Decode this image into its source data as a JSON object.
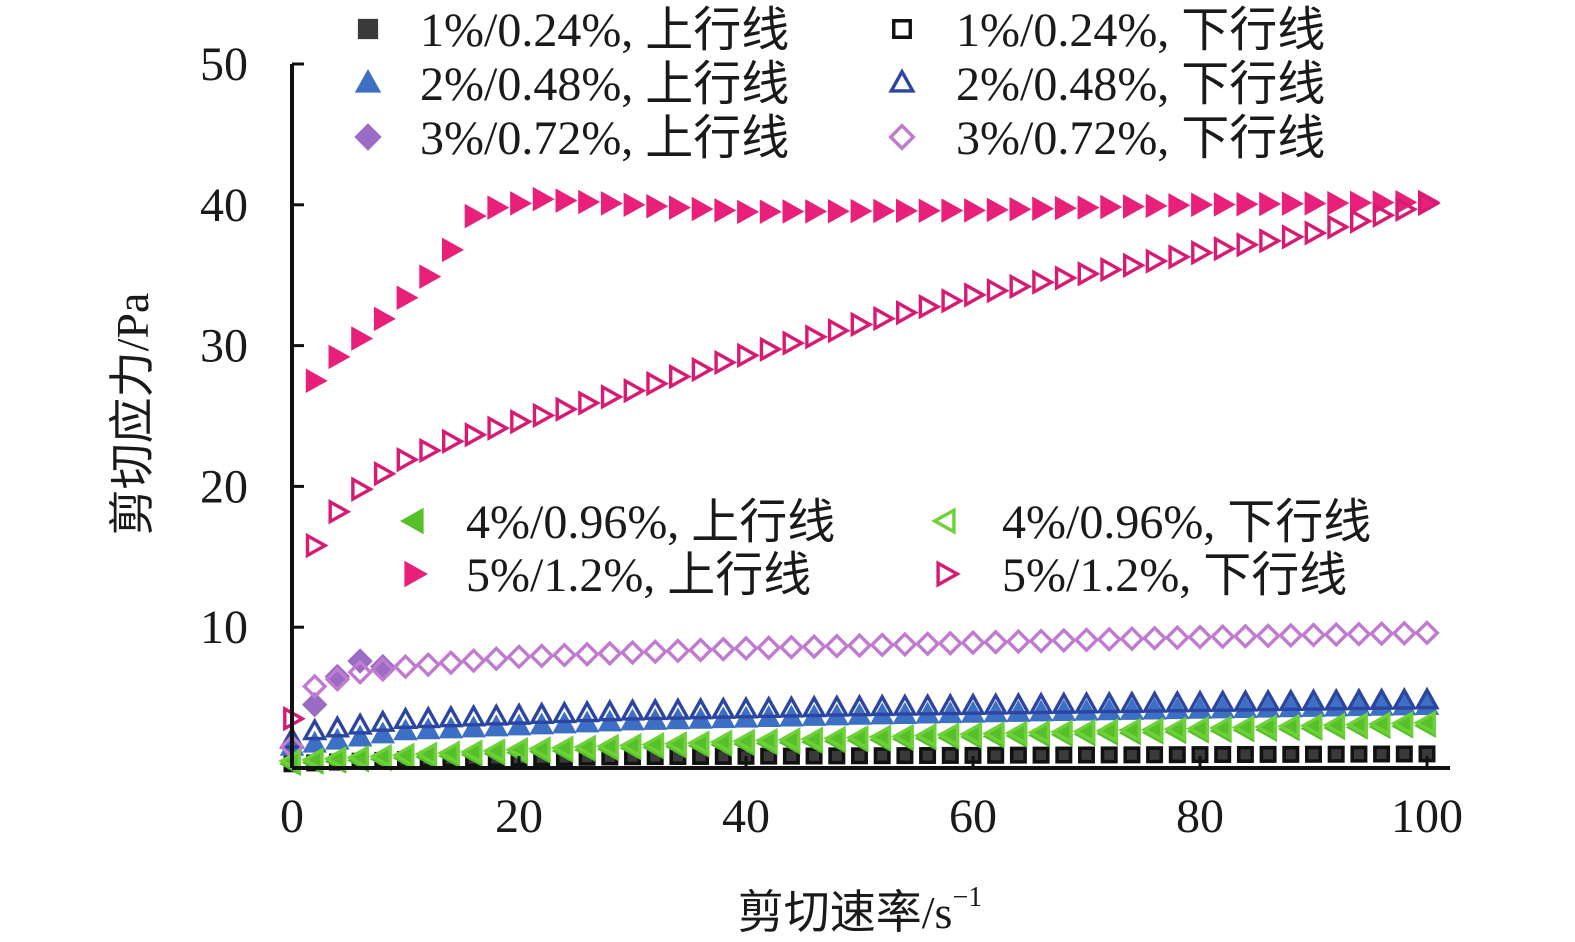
{
  "chart_data": {
    "type": "scatter",
    "xlabel": "剪切速率/s",
    "xlabel_sup": "−1",
    "ylabel": "剪切应力/Pa",
    "xlim": [
      0,
      100
    ],
    "ylim": [
      0,
      50
    ],
    "x_ticks": [
      0,
      20,
      40,
      60,
      80,
      100
    ],
    "y_ticks": [
      10,
      20,
      30,
      40,
      50
    ],
    "x_tick_labels": [
      "0",
      "20",
      "40",
      "60",
      "80",
      "100"
    ],
    "y_tick_labels": [
      "10",
      "20",
      "30",
      "40",
      "50"
    ],
    "grid": false,
    "legend_placement": "top and middle-right",
    "series": [
      {
        "name": "1%/0.24%, 上行线",
        "marker": "square",
        "filled": true,
        "color": "#3a3a3a",
        "x_start": 0,
        "x_end": 100,
        "x_step": 2,
        "anchors_x": [
          0,
          10,
          30,
          60,
          100
        ],
        "anchors_y": [
          0.3,
          0.6,
          0.8,
          0.9,
          1.0
        ]
      },
      {
        "name": "1%/0.24%, 下行线",
        "marker": "square",
        "filled": false,
        "color": "#111111",
        "x_start": 0,
        "x_end": 100,
        "x_step": 2,
        "anchors_x": [
          0,
          10,
          30,
          60,
          100
        ],
        "anchors_y": [
          0.3,
          0.6,
          0.8,
          0.9,
          1.0
        ]
      },
      {
        "name": "2%/0.48%, 上行线",
        "marker": "triangle-up",
        "filled": true,
        "color": "#3d6fc4",
        "x_start": 0,
        "x_end": 100,
        "x_step": 2,
        "anchors_x": [
          0,
          10,
          30,
          50,
          70,
          100
        ],
        "anchors_y": [
          1.5,
          2.6,
          3.3,
          3.7,
          4.0,
          4.4
        ]
      },
      {
        "name": "2%/0.48%, 下行线",
        "marker": "triangle-up",
        "filled": false,
        "color": "#2b45a0",
        "x_start": 0,
        "x_end": 100,
        "x_step": 2,
        "anchors_x": [
          0,
          2,
          10,
          30,
          50,
          70,
          100
        ],
        "anchors_y": [
          2.0,
          2.6,
          3.4,
          4.0,
          4.3,
          4.5,
          4.8
        ]
      },
      {
        "name": "3%/0.72%, 上行线",
        "marker": "diamond",
        "filled": true,
        "color": "#9b6cc4",
        "x_start": 2,
        "x_end": 8,
        "x_step": 2,
        "anchors_x": [
          2,
          4,
          6,
          8
        ],
        "anchors_y": [
          4.5,
          6.5,
          7.6,
          7.2
        ]
      },
      {
        "name": "3%/0.72%, 下行线",
        "marker": "diamond",
        "filled": false,
        "color": "#c07ad0",
        "x_start": 0,
        "x_end": 100,
        "x_step": 2,
        "anchors_x": [
          0,
          2,
          6,
          10,
          20,
          40,
          60,
          80,
          100
        ],
        "anchors_y": [
          1.5,
          5.8,
          6.8,
          7.2,
          7.9,
          8.5,
          8.9,
          9.3,
          9.6
        ]
      },
      {
        "name": "4%/0.96%, 上行线",
        "marker": "triangle-left",
        "filled": true,
        "color": "#55c02a",
        "x_start": 0,
        "x_end": 100,
        "x_step": 2,
        "anchors_x": [
          0,
          20,
          40,
          60,
          80,
          100
        ],
        "anchors_y": [
          0.3,
          1.1,
          1.7,
          2.2,
          2.6,
          3.0
        ]
      },
      {
        "name": "4%/0.96%, 下行线",
        "marker": "triangle-left",
        "filled": false,
        "color": "#6ed138",
        "x_start": 0,
        "x_end": 100,
        "x_step": 2,
        "anchors_x": [
          0,
          20,
          40,
          60,
          80,
          100
        ],
        "anchors_y": [
          0.5,
          1.3,
          1.9,
          2.4,
          2.8,
          3.2
        ]
      },
      {
        "name": "5%/1.2%, 上行线",
        "marker": "triangle-right",
        "filled": true,
        "color": "#e8207a",
        "x_start": 2,
        "x_end": 100,
        "x_step": 2,
        "anchors_x": [
          2,
          4,
          6,
          8,
          10,
          12,
          14,
          16,
          18,
          22,
          30,
          40,
          60,
          80,
          100
        ],
        "anchors_y": [
          27.5,
          29.2,
          30.5,
          31.9,
          33.4,
          34.9,
          36.8,
          39.2,
          39.8,
          40.4,
          40.0,
          39.5,
          39.6,
          40.0,
          40.2
        ]
      },
      {
        "name": "5%/1.2%, 下行线",
        "marker": "triangle-right",
        "filled": false,
        "color": "#d81b72",
        "x_start": 0,
        "x_end": 100,
        "x_step": 2,
        "anchors_x": [
          0,
          2,
          4,
          6,
          8,
          10,
          14,
          20,
          30,
          40,
          50,
          60,
          70,
          80,
          90,
          100
        ],
        "anchors_y": [
          3.5,
          15.8,
          18.2,
          19.8,
          20.9,
          21.9,
          23.2,
          24.6,
          26.8,
          29.3,
          31.5,
          33.6,
          35.1,
          36.6,
          38.0,
          40.1
        ]
      }
    ]
  }
}
